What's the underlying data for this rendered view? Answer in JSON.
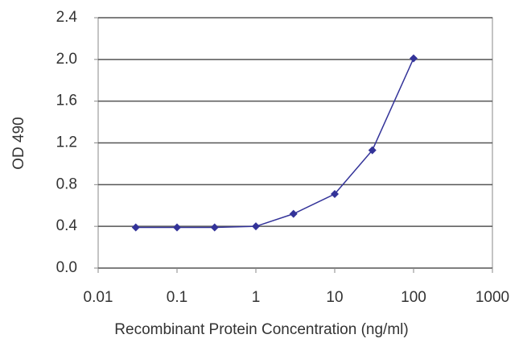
{
  "chart_data": {
    "type": "line",
    "xlabel": "Recombinant Protein Concentration (ng/ml)",
    "ylabel": "OD 490",
    "x": [
      0.03,
      0.1,
      0.3,
      1,
      3,
      10,
      30,
      100
    ],
    "series": [
      {
        "color": "#333399",
        "values": [
          0.39,
          0.39,
          0.39,
          0.4,
          0.52,
          0.71,
          1.13,
          2.01
        ]
      }
    ],
    "xscale": "log",
    "xlim": [
      0.01,
      1000
    ],
    "xticks": [
      0.01,
      0.1,
      1,
      10,
      100,
      1000
    ],
    "ylim": [
      0,
      2.4
    ],
    "yticks": [
      {
        "value": 0,
        "label": "0.0"
      },
      0.4,
      0.8,
      1.2,
      1.6,
      {
        "value": 2,
        "label": "2.0"
      },
      2.4
    ],
    "grid": true
  }
}
